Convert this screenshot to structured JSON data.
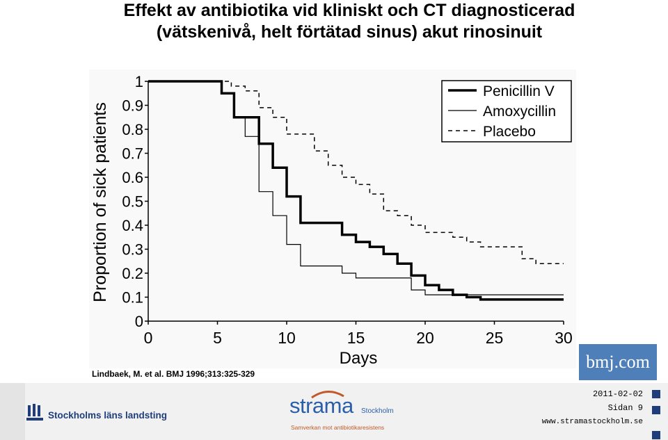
{
  "slide": {
    "title_line1": "Effekt av antibiotika vid kliniskt och CT diagnosticerad",
    "title_line2": "(vätskenivå, helt förtätad sinus) akut rinosinuit",
    "citation": "Lindbaek, M. et al. BMJ 1996;313:325-329",
    "bmj_logo_text": "bmj.com"
  },
  "chart_data": {
    "type": "line",
    "step": true,
    "xlabel": "Days",
    "ylabel": "Proportion of sick patients",
    "xlim": [
      0,
      30
    ],
    "ylim": [
      0,
      1
    ],
    "xticks": [
      "0",
      "5",
      "10",
      "15",
      "20",
      "25",
      "30"
    ],
    "yticks": [
      "0",
      "0.1",
      "0.2",
      "0.3",
      "0.4",
      "0.5",
      "0.6",
      "0.7",
      "0.8",
      "0.9",
      "1"
    ],
    "grid": false,
    "legend_position": "top-right",
    "series": [
      {
        "name": "Penicillin V",
        "style": "thick-solid",
        "color": "#000000",
        "points": [
          [
            0,
            1
          ],
          [
            5.3,
            1
          ],
          [
            5.3,
            0.95
          ],
          [
            6.2,
            0.95
          ],
          [
            6.2,
            0.85
          ],
          [
            8.0,
            0.85
          ],
          [
            8.0,
            0.74
          ],
          [
            9.0,
            0.74
          ],
          [
            9.0,
            0.64
          ],
          [
            10.0,
            0.64
          ],
          [
            10.0,
            0.52
          ],
          [
            11.0,
            0.52
          ],
          [
            11.0,
            0.41
          ],
          [
            14.0,
            0.41
          ],
          [
            14.0,
            0.36
          ],
          [
            15.0,
            0.36
          ],
          [
            15.0,
            0.33
          ],
          [
            16.0,
            0.33
          ],
          [
            16.0,
            0.31
          ],
          [
            17.0,
            0.31
          ],
          [
            17.0,
            0.28
          ],
          [
            18.0,
            0.28
          ],
          [
            18.0,
            0.24
          ],
          [
            19.0,
            0.24
          ],
          [
            19.0,
            0.19
          ],
          [
            20.0,
            0.19
          ],
          [
            20.0,
            0.15
          ],
          [
            21.0,
            0.15
          ],
          [
            21.0,
            0.13
          ],
          [
            22.0,
            0.13
          ],
          [
            22.0,
            0.11
          ],
          [
            23.0,
            0.11
          ],
          [
            23.0,
            0.1
          ],
          [
            24.0,
            0.1
          ],
          [
            24.0,
            0.09
          ],
          [
            30.0,
            0.09
          ]
        ]
      },
      {
        "name": "Amoxycillin",
        "style": "thin-solid",
        "color": "#000000",
        "points": [
          [
            0,
            1
          ],
          [
            5.3,
            1
          ],
          [
            5.3,
            0.95
          ],
          [
            6.2,
            0.95
          ],
          [
            6.2,
            0.85
          ],
          [
            7.0,
            0.85
          ],
          [
            7.0,
            0.77
          ],
          [
            8.0,
            0.77
          ],
          [
            8.0,
            0.54
          ],
          [
            9.0,
            0.54
          ],
          [
            9.0,
            0.44
          ],
          [
            10.0,
            0.44
          ],
          [
            10.0,
            0.32
          ],
          [
            11.0,
            0.32
          ],
          [
            11.0,
            0.23
          ],
          [
            14.0,
            0.23
          ],
          [
            14.0,
            0.2
          ],
          [
            15.0,
            0.2
          ],
          [
            15.0,
            0.18
          ],
          [
            19.0,
            0.18
          ],
          [
            19.0,
            0.13
          ],
          [
            20.0,
            0.13
          ],
          [
            20.0,
            0.11
          ],
          [
            30.0,
            0.11
          ]
        ]
      },
      {
        "name": "Placebo",
        "style": "dashed",
        "color": "#000000",
        "points": [
          [
            0,
            1
          ],
          [
            6.0,
            1
          ],
          [
            6.0,
            0.98
          ],
          [
            7.0,
            0.98
          ],
          [
            7.0,
            0.96
          ],
          [
            8.0,
            0.96
          ],
          [
            8.0,
            0.89
          ],
          [
            9.0,
            0.89
          ],
          [
            9.0,
            0.85
          ],
          [
            10.0,
            0.85
          ],
          [
            10.0,
            0.78
          ],
          [
            12.0,
            0.78
          ],
          [
            12.0,
            0.71
          ],
          [
            13.0,
            0.71
          ],
          [
            13.0,
            0.65
          ],
          [
            14.0,
            0.65
          ],
          [
            14.0,
            0.6
          ],
          [
            15.0,
            0.6
          ],
          [
            15.0,
            0.57
          ],
          [
            16.0,
            0.57
          ],
          [
            16.0,
            0.53
          ],
          [
            17.0,
            0.53
          ],
          [
            17.0,
            0.46
          ],
          [
            18.0,
            0.46
          ],
          [
            18.0,
            0.44
          ],
          [
            19.0,
            0.44
          ],
          [
            19.0,
            0.4
          ],
          [
            20.0,
            0.4
          ],
          [
            20.0,
            0.37
          ],
          [
            22.0,
            0.37
          ],
          [
            22.0,
            0.35
          ],
          [
            23.0,
            0.35
          ],
          [
            23.0,
            0.33
          ],
          [
            24.0,
            0.33
          ],
          [
            24.0,
            0.31
          ],
          [
            27.0,
            0.31
          ],
          [
            27.0,
            0.26
          ],
          [
            28.0,
            0.26
          ],
          [
            28.0,
            0.24
          ],
          [
            30.0,
            0.24
          ]
        ]
      }
    ]
  },
  "footer": {
    "org_name": "Stockholms läns landsting",
    "strama_name": "strama",
    "strama_location": "Stockholm",
    "strama_tagline": "Samverkan mot antibiotikaresistens",
    "date": "2011-02-02",
    "page_label": "Sidan 9",
    "url": "www.stramastockholm.se"
  },
  "colors": {
    "bmj_blue": "#4f7fb8",
    "footer_bg": "#f1f1f1",
    "sll_blue": "#1e3d7a",
    "strama_blue": "#2b5fa8",
    "strama_orange": "#c05a2a"
  }
}
